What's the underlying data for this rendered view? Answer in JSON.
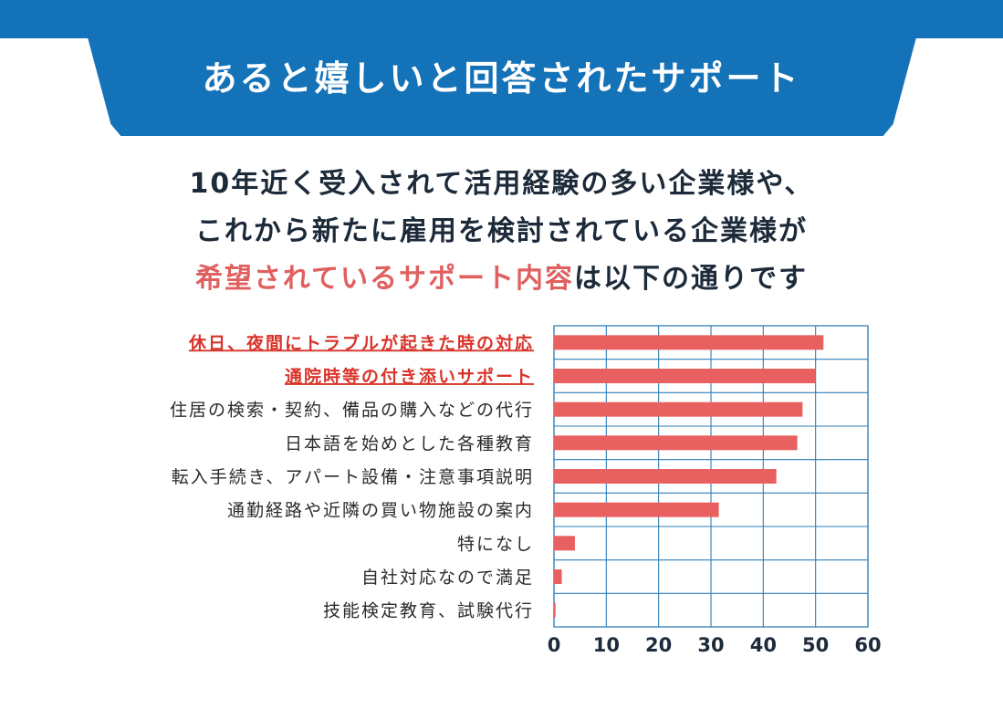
{
  "header": {
    "title": "あると嬉しいと回答されたサポート"
  },
  "intro": {
    "line1": "10年近く受入されて活用経験の多い企業様や、",
    "line2": "これから新たに雇用を検討されている企業様が",
    "line3_highlight": "希望されているサポート内容",
    "line3_rest": "は以下の通りです"
  },
  "colors": {
    "brand_blue": "#1472b8",
    "bar_red": "#e96060",
    "highlight_text": "#d9342b",
    "label_text": "#2b2b2b"
  },
  "chart_data": {
    "type": "bar",
    "orientation": "horizontal",
    "categories": [
      "休日、夜間にトラブルが起きた時の対応",
      "通院時等の付き添いサポート",
      "住居の検索・契約、備品の購入などの代行",
      "日本語を始めとした各種教育",
      "転入手続き、アパート設備・注意事項説明",
      "通勤経路や近隣の買い物施設の案内",
      "特になし",
      "自社対応なので満足",
      "技能検定教育、試験代行"
    ],
    "values": [
      51.5,
      50,
      47.5,
      46.5,
      42.5,
      31.5,
      4,
      1.5,
      0.3
    ],
    "highlighted_categories": [
      0,
      1
    ],
    "xlim": [
      0,
      60
    ],
    "x_ticks": [
      0,
      10,
      20,
      30,
      40,
      50,
      60
    ],
    "x_tick_labels": [
      "0",
      "10",
      "20",
      "30",
      "40",
      "50",
      "60"
    ],
    "grid": true,
    "title": "",
    "xlabel": "",
    "ylabel": "",
    "legend": "none"
  }
}
